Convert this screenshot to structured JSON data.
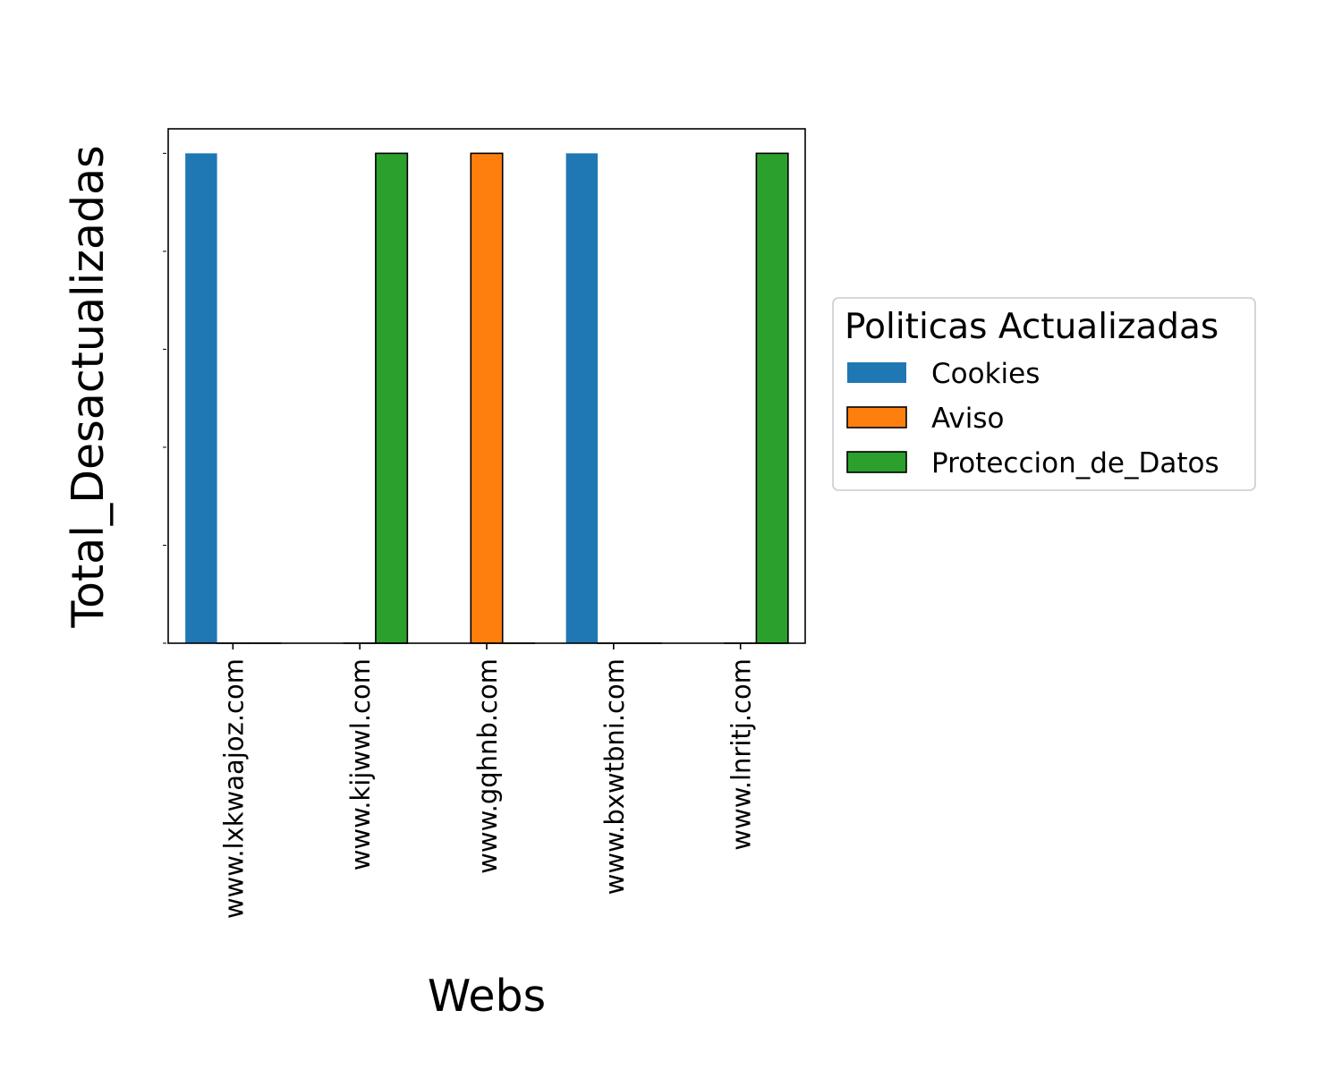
{
  "chart_data": {
    "type": "bar",
    "title": "",
    "xlabel": "Webs",
    "ylabel": "Total_Desactualizadas",
    "categories": [
      "www.lxkwaajoz.com",
      "www.kijwwl.com",
      "www.gqhnb.com",
      "www.bxwtbni.com",
      "www.lnritj.com"
    ],
    "ylim": [
      0,
      1.05
    ],
    "y_tick_values": [
      0,
      0.2,
      0.4,
      0.6,
      0.8,
      1.0
    ],
    "y_tick_labels_visible": false,
    "grid": false,
    "legend": {
      "title": "Politicas Actualizadas",
      "placement": "outside-right"
    },
    "series": [
      {
        "name": "Cookies",
        "color": "#1f77b4",
        "edge": "none",
        "values": [
          1,
          0,
          0,
          1,
          0
        ]
      },
      {
        "name": "Aviso",
        "color": "#ff7f0e",
        "edge": "#000000",
        "values": [
          0,
          0,
          1,
          0,
          0
        ]
      },
      {
        "name": "Proteccion_de_Datos",
        "color": "#2ca02c",
        "edge": "#000000",
        "values": [
          0,
          1,
          0,
          0,
          1
        ]
      }
    ]
  }
}
